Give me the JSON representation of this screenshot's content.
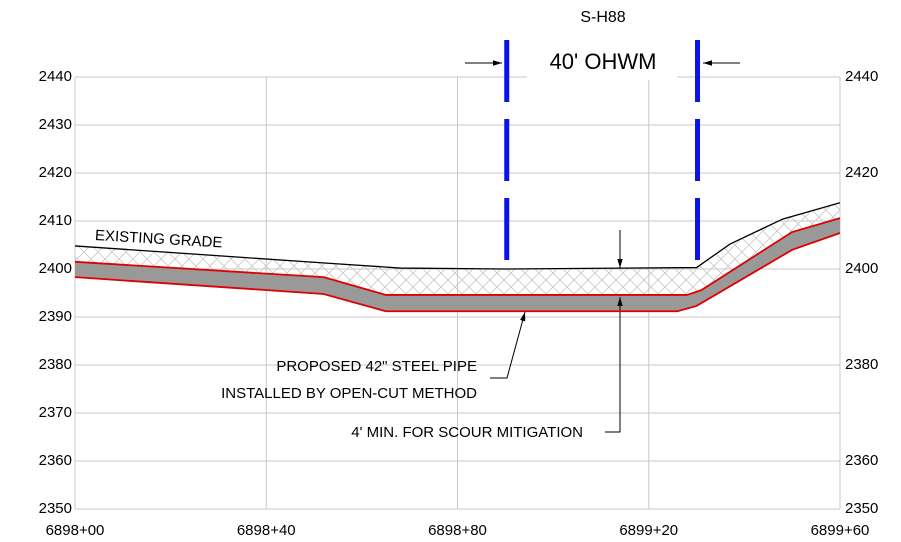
{
  "chart_data": {
    "type": "line",
    "title": "S-H88",
    "xlim": [
      689800,
      689960
    ],
    "xticks": [
      {
        "value": 689800,
        "label": "6898+00"
      },
      {
        "value": 689840,
        "label": "6898+40"
      },
      {
        "value": 689880,
        "label": "6898+80"
      },
      {
        "value": 689920,
        "label": "6899+20"
      },
      {
        "value": 689960,
        "label": "6899+60"
      }
    ],
    "ylim": [
      2350,
      2440
    ],
    "yticks": [
      2350,
      2360,
      2370,
      2380,
      2390,
      2400,
      2410,
      2420,
      2430,
      2440
    ],
    "y2lim": [
      2350,
      2440
    ],
    "y2ticks": [
      2350,
      2360,
      2380,
      2400,
      2420,
      2440
    ],
    "grid": true,
    "series": [
      {
        "name": "EXISTING GRADE",
        "color": "#000000",
        "x": [
          689800,
          689853,
          689868,
          689890,
          689930,
          689937,
          689948,
          689960
        ],
        "values": [
          2404.8,
          2401.2,
          2400.2,
          2400,
          2400.3,
          2405.2,
          2410.4,
          2413.8
        ]
      },
      {
        "color": "#e00000",
        "x": [
          689800,
          689852,
          689865,
          689928,
          689931,
          689950,
          689960
        ],
        "values": [
          2401.5,
          2398.3,
          2394.6,
          2394.6,
          2395.6,
          2407.7,
          2410.6
        ]
      },
      {
        "color": "#e00000",
        "x": [
          689800,
          689852,
          689865,
          689926,
          689930,
          689950,
          689960
        ],
        "values": [
          2398.3,
          2394.8,
          2391.2,
          2391.2,
          2392.3,
          2404,
          2407.5
        ]
      }
    ],
    "ohwm": {
      "label": "40' OHWM",
      "x": [
        689890.3,
        689930.2
      ],
      "color": "#0a14e6"
    },
    "annotations": [
      "PROPOSED 42\" STEEL PIPE",
      "INSTALLED BY OPEN-CUT METHOD",
      "4' MIN. FOR SCOUR MITIGATION"
    ]
  }
}
